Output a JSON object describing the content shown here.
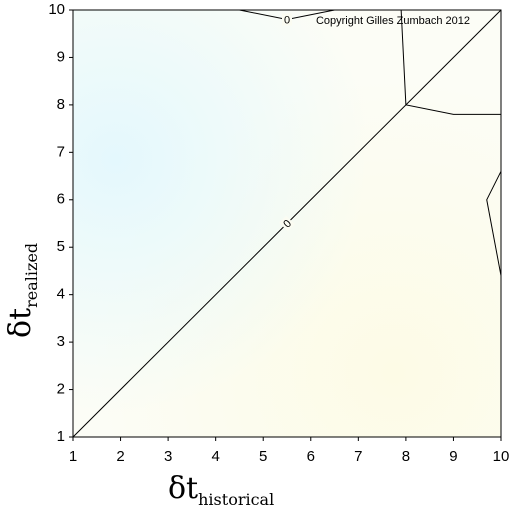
{
  "chart_data": {
    "type": "contour",
    "xlim": [
      1,
      10
    ],
    "ylim": [
      1,
      10
    ],
    "xticks": [
      1,
      2,
      3,
      4,
      5,
      6,
      7,
      8,
      9,
      10
    ],
    "yticks": [
      1,
      2,
      3,
      4,
      5,
      6,
      7,
      8,
      9,
      10
    ],
    "x_label": {
      "symbol": "δt",
      "subscript": "historical"
    },
    "y_label": {
      "symbol": "δt",
      "subscript": "realized"
    },
    "annotation": "Copyright Gilles Zumbach 2012",
    "color": "#000000",
    "contours": [
      {
        "level": 0,
        "labeled": true,
        "x": [
          1,
          5.5,
          10
        ],
        "y": [
          1,
          5.5,
          10
        ]
      },
      {
        "level": 0,
        "labeled": true,
        "x": [
          4.5,
          5.5,
          6.5
        ],
        "y": [
          10,
          9.8,
          10
        ]
      },
      {
        "level": 0,
        "labeled": false,
        "x": [
          7.9,
          7.95,
          8,
          9,
          10
        ],
        "y": [
          10,
          9,
          8,
          7.8,
          7.8
        ]
      },
      {
        "level": 0,
        "labeled": false,
        "x": [
          10,
          9.7,
          10
        ],
        "y": [
          6.6,
          6,
          4.4
        ]
      }
    ]
  }
}
